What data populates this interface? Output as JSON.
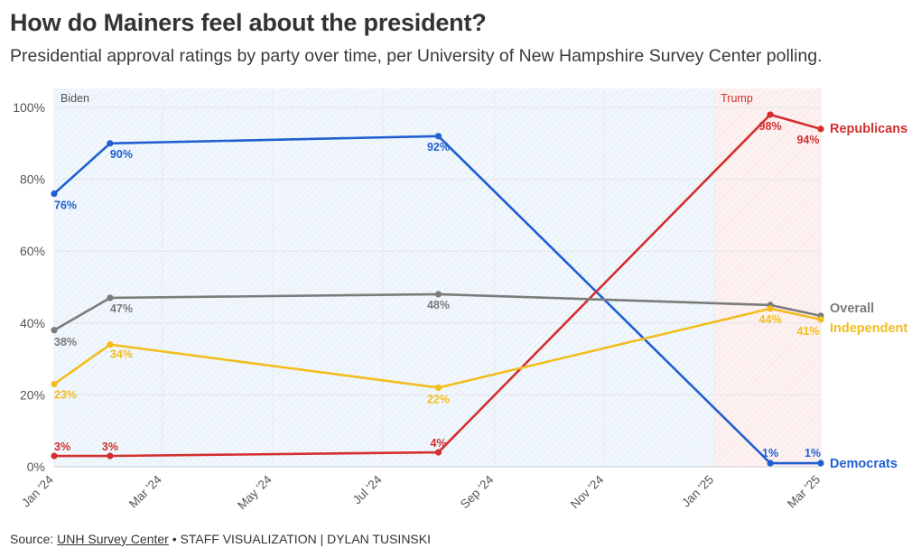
{
  "header": {
    "title": "How do Mainers feel about the president?",
    "subtitle": "Presidential approval ratings by party over time, per University of New Hampshire Survey Center polling."
  },
  "footer": {
    "source_prefix": "Source: ",
    "source_link": "UNH Survey Center",
    "source_suffix": " • STAFF VISUALIZATION | DYLAN TUSINSKI"
  },
  "chart_data": {
    "type": "line",
    "title": "How do Mainers feel about the president?",
    "subtitle": "Presidential approval ratings by party over time, per University of New Hampshire Survey Center polling.",
    "xlabel": "",
    "ylabel": "",
    "x_axis": {
      "type": "time",
      "range": [
        "2024-01-01",
        "2025-03-01"
      ],
      "ticks": [
        {
          "date": "2024-01-01",
          "label": "Jan '24"
        },
        {
          "date": "2024-03-01",
          "label": "Mar '24"
        },
        {
          "date": "2024-05-01",
          "label": "May '24"
        },
        {
          "date": "2024-07-01",
          "label": "Jul '24"
        },
        {
          "date": "2024-09-01",
          "label": "Sep '24"
        },
        {
          "date": "2024-11-01",
          "label": "Nov '24"
        },
        {
          "date": "2025-01-01",
          "label": "Jan '25"
        },
        {
          "date": "2025-03-01",
          "label": "Mar '25"
        }
      ]
    },
    "y_axis": {
      "range": [
        0,
        100
      ],
      "ticks": [
        0,
        20,
        40,
        60,
        80,
        100
      ],
      "tick_labels": [
        "0%",
        "20%",
        "40%",
        "60%",
        "80%",
        "100%"
      ]
    },
    "grid": true,
    "periods": [
      {
        "label": "Biden",
        "start": "2024-01-01",
        "end": "2025-01-01",
        "color": "#d6e8f5"
      },
      {
        "label": "Trump",
        "start": "2025-01-01",
        "end": "2025-03-01",
        "color": "#f9d8d8"
      }
    ],
    "series": [
      {
        "name": "Democrats",
        "color": "#1f5fd1",
        "points": [
          {
            "date": "2024-01-01",
            "value": 76,
            "label": "76%"
          },
          {
            "date": "2024-02-01",
            "value": 90,
            "label": "90%"
          },
          {
            "date": "2024-08-01",
            "value": 92,
            "label": "92%"
          },
          {
            "date": "2025-02-01",
            "value": 1,
            "label": "1%"
          },
          {
            "date": "2025-03-01",
            "value": 1,
            "label": "1%"
          }
        ]
      },
      {
        "name": "Republicans",
        "color": "#d32f2f",
        "points": [
          {
            "date": "2024-01-01",
            "value": 3,
            "label": "3%"
          },
          {
            "date": "2024-02-01",
            "value": 3,
            "label": "3%"
          },
          {
            "date": "2024-08-01",
            "value": 4,
            "label": "4%"
          },
          {
            "date": "2025-02-01",
            "value": 98,
            "label": "98%"
          },
          {
            "date": "2025-03-01",
            "value": 94,
            "label": "94%"
          }
        ]
      },
      {
        "name": "Overall",
        "color": "#7b7b7b",
        "points": [
          {
            "date": "2024-01-01",
            "value": 38,
            "label": "38%"
          },
          {
            "date": "2024-02-01",
            "value": 47,
            "label": "47%"
          },
          {
            "date": "2024-08-01",
            "value": 48,
            "label": "48%"
          },
          {
            "date": "2025-02-01",
            "value": 45,
            "label": ""
          },
          {
            "date": "2025-03-01",
            "value": 42,
            "label": ""
          }
        ]
      },
      {
        "name": "Independent",
        "color": "#f2bd1d",
        "points": [
          {
            "date": "2024-01-01",
            "value": 23,
            "label": "23%"
          },
          {
            "date": "2024-02-01",
            "value": 34,
            "label": "34%"
          },
          {
            "date": "2024-08-01",
            "value": 22,
            "label": "22%"
          },
          {
            "date": "2025-02-01",
            "value": 44,
            "label": "44%"
          },
          {
            "date": "2025-03-01",
            "value": 41,
            "label": "41%"
          }
        ]
      }
    ]
  }
}
